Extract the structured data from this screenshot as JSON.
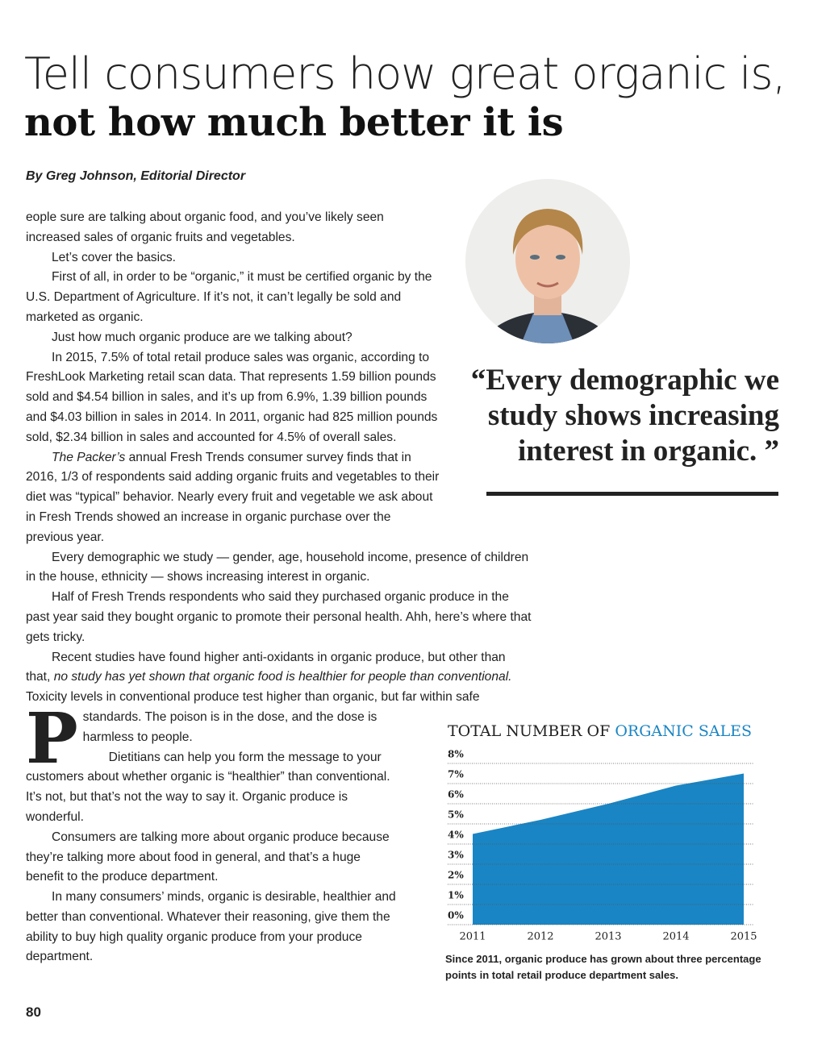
{
  "article": {
    "title_light": "Tell consumers how great organic is,",
    "title_bold": "not how much better it is",
    "byline": "By Greg Johnson, Editorial Director",
    "drop_cap": "P",
    "paragraphs": [
      [
        "eople sure are talking about organic food, and you’ve likely seen increased sales of organic fruits and vegetables."
      ],
      [
        "Let’s cover the basics."
      ],
      [
        "First of all, in order to be “organic,” it must be certified organic by the U.S. Department of Agriculture. If it’s not, it can’t legally be sold and marketed as organic."
      ],
      [
        "Just how much organic produce are we talking about?"
      ],
      [
        "In 2015, 7.5% of total retail produce sales was organic, according to FreshLook Marketing retail scan data. That represents 1.59 billion pounds sold and $4.54 billion in sales, and it’s up from 6.9%, 1.39 billion pounds and $4.03 billion in sales in 2014. In 2011, organic had 825 million pounds sold, $2.34 billion in sales and accounted for 4.5% of overall sales."
      ],
      [
        {
          "text": "The Packer’s",
          "style": "italic"
        },
        " annual Fresh Trends consumer survey finds that in 2016, 1/3 of respondents said adding organic fruits and vegetables to their diet was “typical” behavior. Nearly every fruit and vegetable we ask about in Fresh Trends showed an increase in organic purchase over the previous year."
      ],
      [
        "Every demographic we study — gender, age, household income, presence of children in the house, ethnicity — shows increasing interest in organic."
      ],
      [
        "Half of Fresh Trends respondents who said they purchased organic produce in the past year said they bought organic to promote their personal health. Ahh, here’s where that gets tricky."
      ],
      [
        "Recent studies have found higher anti-oxidants in organic produce, but other than that, ",
        {
          "text": "no study has yet shown that organic food is healthier for people than conventional.",
          "style": "italic"
        },
        " Toxicity levels in conventional produce test higher than organic, but far within safe standards. The poison is in the dose, and the dose is harmless to people."
      ],
      [
        "Dietitians can help you form the message to your customers about whether organic is “healthier” than conventional. It’s not, but that’s not the way to say it. Organic produce is wonderful."
      ],
      [
        "Consumers are talking more about organic produce because they’re talking more about food in general, and that’s a huge benefit to the produce department."
      ],
      [
        "In many consumers’ minds, organic is desirable, healthier and better than conventional. Whatever their reasoning, give them the ability to buy high quality organic produce from your produce department."
      ]
    ],
    "pull_quote": "“Every demographic we study shows increasing interest in organic. ”",
    "page_number": "80"
  },
  "chart_data": {
    "type": "area",
    "title": "TOTAL NUMBER OF",
    "title_highlight": "ORGANIC SALES",
    "categories": [
      "2011",
      "2012",
      "2013",
      "2014",
      "2015"
    ],
    "values": [
      4.5,
      5.2,
      6.0,
      6.9,
      7.5
    ],
    "color": "#1a85c4",
    "ylim": [
      0,
      8
    ],
    "yticks": [
      {
        "value": 0,
        "label": "0%"
      },
      {
        "value": 1,
        "label": "1%"
      },
      {
        "value": 2,
        "label": "2%"
      },
      {
        "value": 3,
        "label": "3%"
      },
      {
        "value": 4,
        "label": "4%"
      },
      {
        "value": 5,
        "label": "5%"
      },
      {
        "value": 6,
        "label": "6%"
      },
      {
        "value": 7,
        "label": "7%"
      },
      {
        "value": 8,
        "label": "8%"
      }
    ],
    "grid": true,
    "caption": "Since 2011, organic produce has grown about three percentage points in total retail produce department sales."
  }
}
